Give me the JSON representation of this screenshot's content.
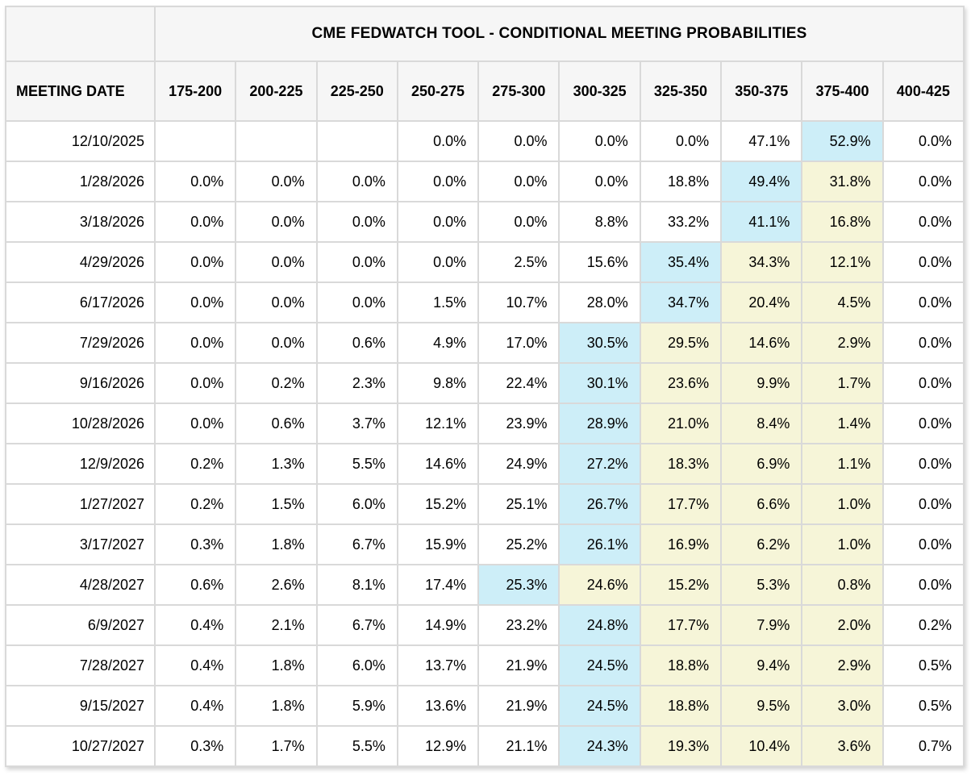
{
  "colors": {
    "highlight_blue": "#cdeef8",
    "highlight_yellow": "#f6f5d8",
    "header_bg": "#f6f6f6",
    "grid": "#d9d9d9"
  },
  "chart_data": {
    "type": "table",
    "title": "CME FEDWATCH TOOL - CONDITIONAL MEETING PROBABILITIES",
    "date_column_label": "MEETING DATE",
    "columns": [
      "175-200",
      "200-225",
      "225-250",
      "250-275",
      "275-300",
      "300-325",
      "325-350",
      "350-375",
      "375-400",
      "400-425"
    ],
    "rows": [
      {
        "date": "12/10/2025",
        "values": [
          "",
          "",
          "",
          "0.0%",
          "0.0%",
          "0.0%",
          "0.0%",
          "47.1%",
          "52.9%",
          "0.0%"
        ],
        "highlight_blue": 8,
        "highlight_yellow": []
      },
      {
        "date": "1/28/2026",
        "values": [
          "0.0%",
          "0.0%",
          "0.0%",
          "0.0%",
          "0.0%",
          "0.0%",
          "18.8%",
          "49.4%",
          "31.8%",
          "0.0%"
        ],
        "highlight_blue": 7,
        "highlight_yellow": [
          8
        ]
      },
      {
        "date": "3/18/2026",
        "values": [
          "0.0%",
          "0.0%",
          "0.0%",
          "0.0%",
          "0.0%",
          "8.8%",
          "33.2%",
          "41.1%",
          "16.8%",
          "0.0%"
        ],
        "highlight_blue": 7,
        "highlight_yellow": [
          8
        ]
      },
      {
        "date": "4/29/2026",
        "values": [
          "0.0%",
          "0.0%",
          "0.0%",
          "0.0%",
          "2.5%",
          "15.6%",
          "35.4%",
          "34.3%",
          "12.1%",
          "0.0%"
        ],
        "highlight_blue": 6,
        "highlight_yellow": [
          7,
          8
        ]
      },
      {
        "date": "6/17/2026",
        "values": [
          "0.0%",
          "0.0%",
          "0.0%",
          "1.5%",
          "10.7%",
          "28.0%",
          "34.7%",
          "20.4%",
          "4.5%",
          "0.0%"
        ],
        "highlight_blue": 6,
        "highlight_yellow": [
          7,
          8
        ]
      },
      {
        "date": "7/29/2026",
        "values": [
          "0.0%",
          "0.0%",
          "0.6%",
          "4.9%",
          "17.0%",
          "30.5%",
          "29.5%",
          "14.6%",
          "2.9%",
          "0.0%"
        ],
        "highlight_blue": 5,
        "highlight_yellow": [
          6,
          7,
          8
        ]
      },
      {
        "date": "9/16/2026",
        "values": [
          "0.0%",
          "0.2%",
          "2.3%",
          "9.8%",
          "22.4%",
          "30.1%",
          "23.6%",
          "9.9%",
          "1.7%",
          "0.0%"
        ],
        "highlight_blue": 5,
        "highlight_yellow": [
          6,
          7,
          8
        ]
      },
      {
        "date": "10/28/2026",
        "values": [
          "0.0%",
          "0.6%",
          "3.7%",
          "12.1%",
          "23.9%",
          "28.9%",
          "21.0%",
          "8.4%",
          "1.4%",
          "0.0%"
        ],
        "highlight_blue": 5,
        "highlight_yellow": [
          6,
          7,
          8
        ]
      },
      {
        "date": "12/9/2026",
        "values": [
          "0.2%",
          "1.3%",
          "5.5%",
          "14.6%",
          "24.9%",
          "27.2%",
          "18.3%",
          "6.9%",
          "1.1%",
          "0.0%"
        ],
        "highlight_blue": 5,
        "highlight_yellow": [
          6,
          7,
          8
        ]
      },
      {
        "date": "1/27/2027",
        "values": [
          "0.2%",
          "1.5%",
          "6.0%",
          "15.2%",
          "25.1%",
          "26.7%",
          "17.7%",
          "6.6%",
          "1.0%",
          "0.0%"
        ],
        "highlight_blue": 5,
        "highlight_yellow": [
          6,
          7,
          8
        ]
      },
      {
        "date": "3/17/2027",
        "values": [
          "0.3%",
          "1.8%",
          "6.7%",
          "15.9%",
          "25.2%",
          "26.1%",
          "16.9%",
          "6.2%",
          "1.0%",
          "0.0%"
        ],
        "highlight_blue": 5,
        "highlight_yellow": [
          6,
          7,
          8
        ]
      },
      {
        "date": "4/28/2027",
        "values": [
          "0.6%",
          "2.6%",
          "8.1%",
          "17.4%",
          "25.3%",
          "24.6%",
          "15.2%",
          "5.3%",
          "0.8%",
          "0.0%"
        ],
        "highlight_blue": 4,
        "highlight_yellow": [
          5,
          6,
          7,
          8
        ]
      },
      {
        "date": "6/9/2027",
        "values": [
          "0.4%",
          "2.1%",
          "6.7%",
          "14.9%",
          "23.2%",
          "24.8%",
          "17.7%",
          "7.9%",
          "2.0%",
          "0.2%"
        ],
        "highlight_blue": 5,
        "highlight_yellow": [
          6,
          7,
          8
        ]
      },
      {
        "date": "7/28/2027",
        "values": [
          "0.4%",
          "1.8%",
          "6.0%",
          "13.7%",
          "21.9%",
          "24.5%",
          "18.8%",
          "9.4%",
          "2.9%",
          "0.5%"
        ],
        "highlight_blue": 5,
        "highlight_yellow": [
          6,
          7,
          8
        ]
      },
      {
        "date": "9/15/2027",
        "values": [
          "0.4%",
          "1.8%",
          "5.9%",
          "13.6%",
          "21.9%",
          "24.5%",
          "18.8%",
          "9.5%",
          "3.0%",
          "0.5%"
        ],
        "highlight_blue": 5,
        "highlight_yellow": [
          6,
          7,
          8
        ]
      },
      {
        "date": "10/27/2027",
        "values": [
          "0.3%",
          "1.7%",
          "5.5%",
          "12.9%",
          "21.1%",
          "24.3%",
          "19.3%",
          "10.4%",
          "3.6%",
          "0.7%"
        ],
        "highlight_blue": 5,
        "highlight_yellow": [
          6,
          7,
          8
        ]
      }
    ]
  }
}
